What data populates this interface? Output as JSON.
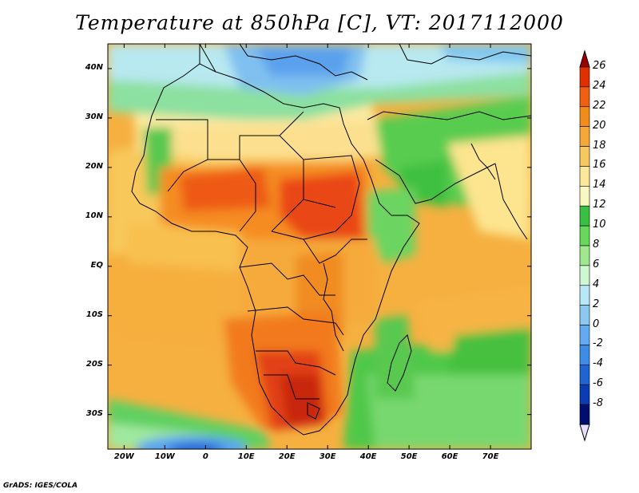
{
  "title": "Temperature at 850hPa [C], VT: 2017112000",
  "credit": "GrADS: IGES/COLA",
  "map": {
    "projection": "latlon",
    "lon_range": [
      -24,
      80
    ],
    "lat_range": [
      -37,
      45
    ],
    "variable": "temperature_850hPa",
    "units": "C",
    "lat_ticks": [
      {
        "lat": 40,
        "label": "40N"
      },
      {
        "lat": 30,
        "label": "30N"
      },
      {
        "lat": 20,
        "label": "20N"
      },
      {
        "lat": 10,
        "label": "10N"
      },
      {
        "lat": 0,
        "label": "EQ"
      },
      {
        "lat": -10,
        "label": "10S"
      },
      {
        "lat": -20,
        "label": "20S"
      },
      {
        "lat": -30,
        "label": "30S"
      }
    ],
    "lon_ticks": [
      {
        "lon": -20,
        "label": "20W"
      },
      {
        "lon": -10,
        "label": "10W"
      },
      {
        "lon": 0,
        "label": "0"
      },
      {
        "lon": 10,
        "label": "10E"
      },
      {
        "lon": 20,
        "label": "20E"
      },
      {
        "lon": 30,
        "label": "30E"
      },
      {
        "lon": 40,
        "label": "40E"
      },
      {
        "lon": 50,
        "label": "50E"
      },
      {
        "lon": 60,
        "label": "60E"
      },
      {
        "lon": 70,
        "label": "70E"
      }
    ]
  },
  "colorbar": {
    "levels": [
      "26",
      "24",
      "22",
      "20",
      "18",
      "16",
      "14",
      "12",
      "10",
      "8",
      "6",
      "4",
      "2",
      "0",
      "-2",
      "-4",
      "-6",
      "-8"
    ],
    "colors": [
      "#a00000",
      "#e03000",
      "#f06010",
      "#f08c1a",
      "#f5a836",
      "#f8c860",
      "#fde89a",
      "#f8f8c0",
      "#38c040",
      "#68d85c",
      "#a0e890",
      "#d0f8d0",
      "#b8e8f8",
      "#8cc8f0",
      "#64aaf0",
      "#3c8ce8",
      "#1e64d2",
      "#0a3cb4",
      "#000e6e",
      "#e8e0ff"
    ]
  }
}
